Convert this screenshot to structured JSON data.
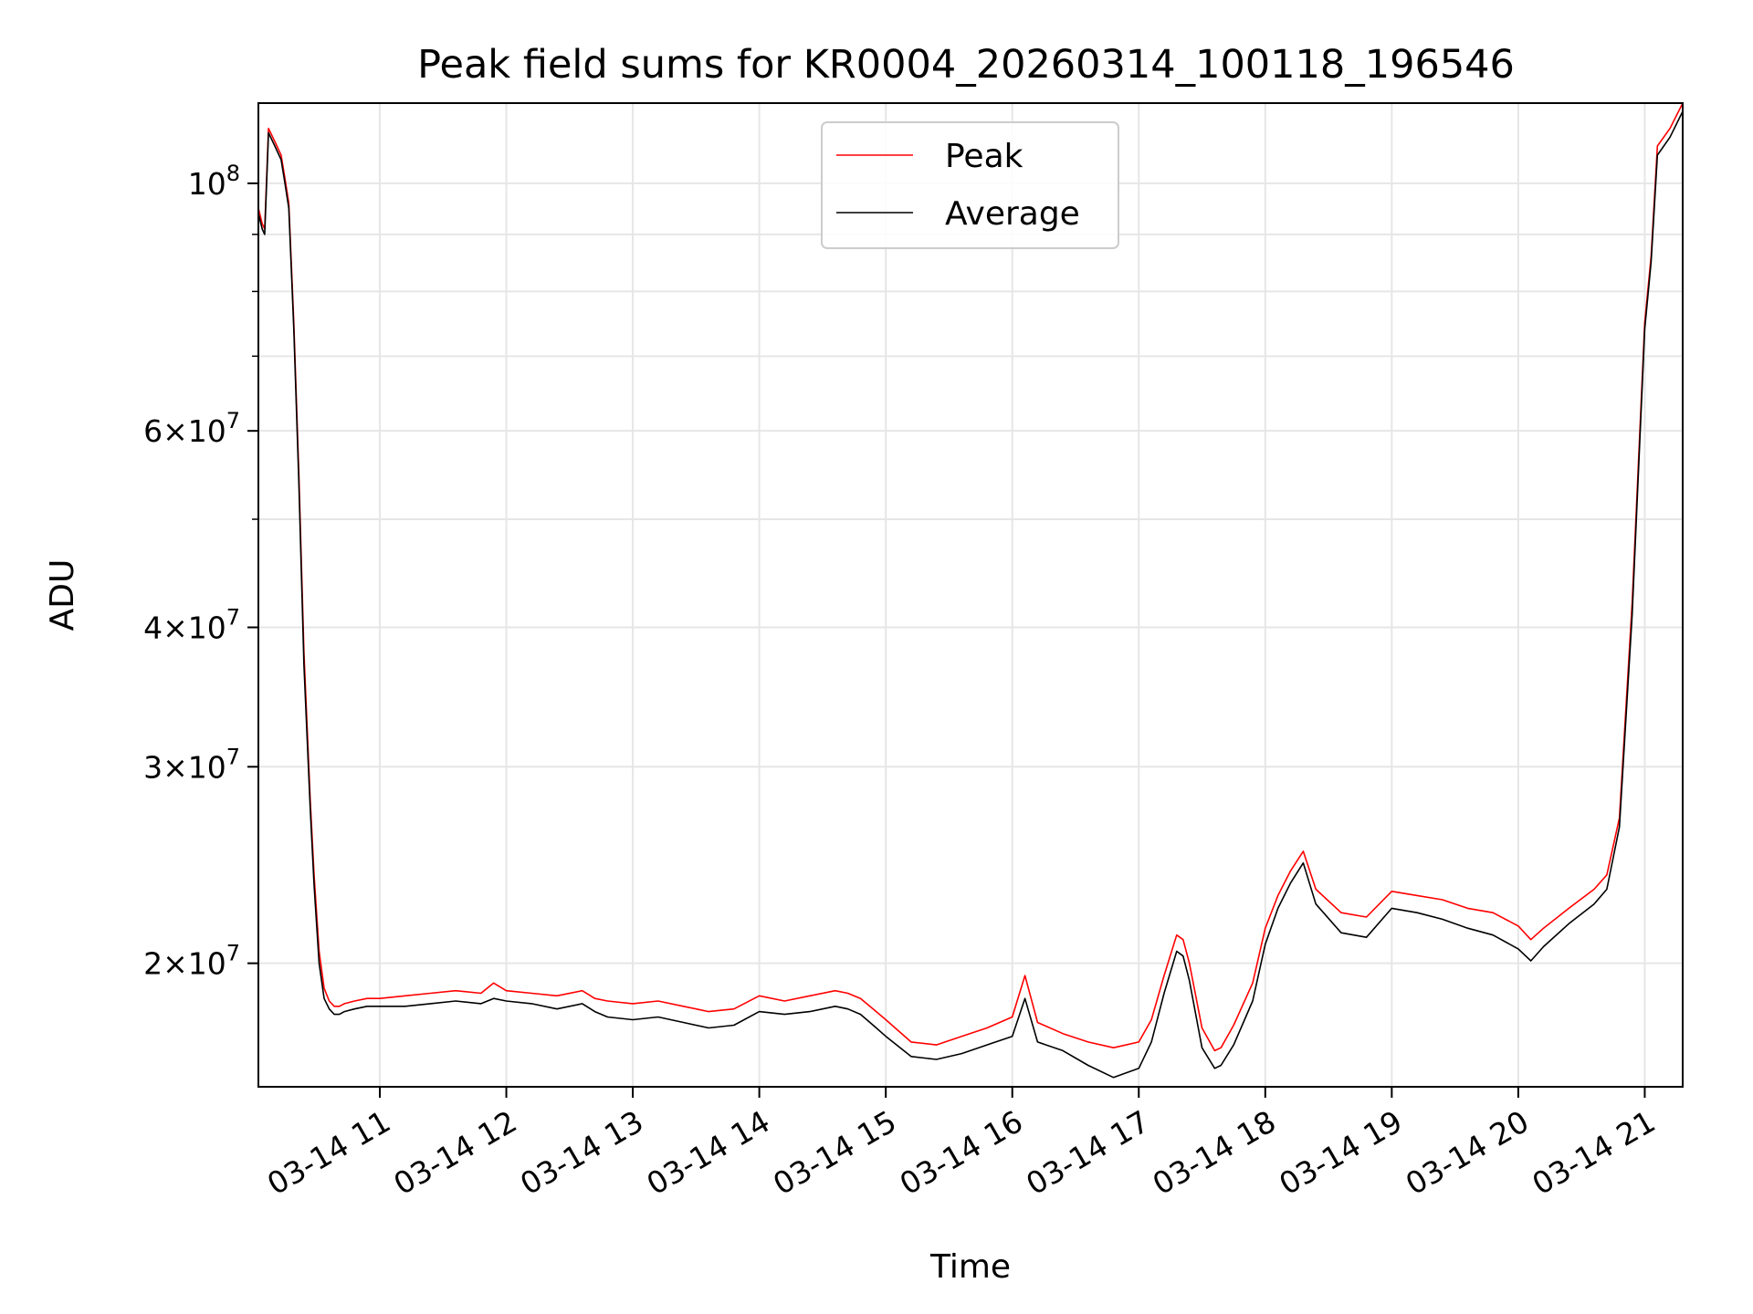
{
  "chart_data": {
    "type": "line",
    "title": "Peak field sums for KR0004_20260314_100118_196546",
    "xlabel": "Time",
    "ylabel": "ADU",
    "yscale": "log",
    "xlim": [
      10.04,
      21.3
    ],
    "ylim": [
      15500000,
      118000000
    ],
    "grid": true,
    "legend_position": "top-center",
    "x_ticks": [
      {
        "value": 11,
        "label": "03-14 11"
      },
      {
        "value": 12,
        "label": "03-14 12"
      },
      {
        "value": 13,
        "label": "03-14 13"
      },
      {
        "value": 14,
        "label": "03-14 14"
      },
      {
        "value": 15,
        "label": "03-14 15"
      },
      {
        "value": 16,
        "label": "03-14 16"
      },
      {
        "value": 17,
        "label": "03-14 17"
      },
      {
        "value": 18,
        "label": "03-14 18"
      },
      {
        "value": 19,
        "label": "03-14 19"
      },
      {
        "value": 20,
        "label": "03-14 20"
      },
      {
        "value": 21,
        "label": "03-14 21"
      }
    ],
    "y_ticks": [
      {
        "value": 20000000,
        "mant": "2",
        "exp": "7"
      },
      {
        "value": 30000000,
        "mant": "3",
        "exp": "7"
      },
      {
        "value": 40000000,
        "mant": "4",
        "exp": "7"
      },
      {
        "value": 60000000,
        "mant": "6",
        "exp": "7"
      },
      {
        "value": 100000000,
        "mant": "10",
        "exp": "8"
      }
    ],
    "y_minor": [
      50000000,
      70000000,
      80000000,
      90000000
    ],
    "y_major_label_base": "10",
    "series": [
      {
        "name": "Peak",
        "color": "#ff0000",
        "x": [
          10.04,
          10.07,
          10.09,
          10.12,
          10.17,
          10.22,
          10.25,
          10.28,
          10.32,
          10.36,
          10.4,
          10.45,
          10.48,
          10.52,
          10.56,
          10.6,
          10.64,
          10.68,
          10.72,
          10.8,
          10.9,
          11.0,
          11.2,
          11.4,
          11.6,
          11.8,
          11.9,
          12.0,
          12.2,
          12.4,
          12.6,
          12.7,
          12.8,
          13.0,
          13.2,
          13.4,
          13.6,
          13.8,
          14.0,
          14.2,
          14.4,
          14.6,
          14.7,
          14.8,
          14.9,
          15.0,
          15.2,
          15.4,
          15.6,
          15.8,
          16.0,
          16.1,
          16.2,
          16.4,
          16.6,
          16.8,
          17.0,
          17.1,
          17.2,
          17.3,
          17.35,
          17.4,
          17.5,
          17.6,
          17.65,
          17.75,
          17.9,
          18.0,
          18.1,
          18.2,
          18.3,
          18.4,
          18.6,
          18.8,
          19.0,
          19.2,
          19.4,
          19.6,
          19.8,
          20.0,
          20.1,
          20.2,
          20.4,
          20.6,
          20.7,
          20.8,
          20.9,
          21.0,
          21.05,
          21.1,
          21.2,
          21.3
        ],
        "values": [
          95000000,
          92000000,
          91000000,
          112000000,
          109000000,
          106000000,
          101000000,
          96000000,
          75000000,
          55000000,
          38000000,
          28000000,
          24000000,
          20500000,
          19000000,
          18500000,
          18300000,
          18300000,
          18400000,
          18500000,
          18600000,
          18600000,
          18700000,
          18800000,
          18900000,
          18800000,
          19200000,
          18900000,
          18800000,
          18700000,
          18900000,
          18600000,
          18500000,
          18400000,
          18500000,
          18300000,
          18100000,
          18200000,
          18700000,
          18500000,
          18700000,
          18900000,
          18800000,
          18600000,
          18200000,
          17800000,
          17000000,
          16900000,
          17200000,
          17500000,
          17900000,
          19500000,
          17700000,
          17300000,
          17000000,
          16800000,
          17000000,
          17800000,
          19500000,
          21200000,
          21000000,
          20000000,
          17500000,
          16700000,
          16800000,
          17600000,
          19200000,
          21500000,
          23000000,
          24200000,
          25200000,
          23300000,
          22200000,
          22000000,
          23200000,
          23000000,
          22800000,
          22400000,
          22200000,
          21600000,
          21000000,
          21500000,
          22400000,
          23300000,
          24000000,
          27000000,
          42000000,
          75000000,
          86000000,
          108000000,
          112000000,
          118000000
        ]
      },
      {
        "name": "Average",
        "color": "#000000",
        "x": [
          10.04,
          10.07,
          10.09,
          10.12,
          10.17,
          10.22,
          10.25,
          10.28,
          10.32,
          10.36,
          10.4,
          10.45,
          10.48,
          10.52,
          10.56,
          10.6,
          10.64,
          10.68,
          10.72,
          10.8,
          10.9,
          11.0,
          11.2,
          11.4,
          11.6,
          11.8,
          11.9,
          12.0,
          12.2,
          12.4,
          12.6,
          12.7,
          12.8,
          13.0,
          13.2,
          13.4,
          13.6,
          13.8,
          14.0,
          14.2,
          14.4,
          14.6,
          14.7,
          14.8,
          14.9,
          15.0,
          15.2,
          15.4,
          15.6,
          15.8,
          16.0,
          16.1,
          16.2,
          16.4,
          16.6,
          16.8,
          17.0,
          17.1,
          17.2,
          17.3,
          17.35,
          17.4,
          17.5,
          17.6,
          17.65,
          17.75,
          17.9,
          18.0,
          18.1,
          18.2,
          18.3,
          18.4,
          18.6,
          18.8,
          19.0,
          19.2,
          19.4,
          19.6,
          19.8,
          20.0,
          20.1,
          20.2,
          20.4,
          20.6,
          20.7,
          20.8,
          20.9,
          21.0,
          21.05,
          21.1,
          21.2,
          21.3
        ],
        "values": [
          94000000,
          91000000,
          90000000,
          111000000,
          108000000,
          105000000,
          100000000,
          95000000,
          74000000,
          54000000,
          37000000,
          27500000,
          23500000,
          20000000,
          18600000,
          18200000,
          18000000,
          18000000,
          18100000,
          18200000,
          18300000,
          18300000,
          18300000,
          18400000,
          18500000,
          18400000,
          18600000,
          18500000,
          18400000,
          18200000,
          18400000,
          18100000,
          17900000,
          17800000,
          17900000,
          17700000,
          17500000,
          17600000,
          18100000,
          18000000,
          18100000,
          18300000,
          18200000,
          18000000,
          17600000,
          17200000,
          16500000,
          16400000,
          16600000,
          16900000,
          17200000,
          18600000,
          17000000,
          16700000,
          16200000,
          15800000,
          16100000,
          17000000,
          18800000,
          20500000,
          20300000,
          19300000,
          16800000,
          16100000,
          16200000,
          16900000,
          18500000,
          20800000,
          22400000,
          23600000,
          24600000,
          22600000,
          21300000,
          21100000,
          22400000,
          22200000,
          21900000,
          21500000,
          21200000,
          20600000,
          20100000,
          20700000,
          21700000,
          22600000,
          23300000,
          26500000,
          41000000,
          74000000,
          85000000,
          106000000,
          110000000,
          116000000
        ]
      }
    ]
  }
}
